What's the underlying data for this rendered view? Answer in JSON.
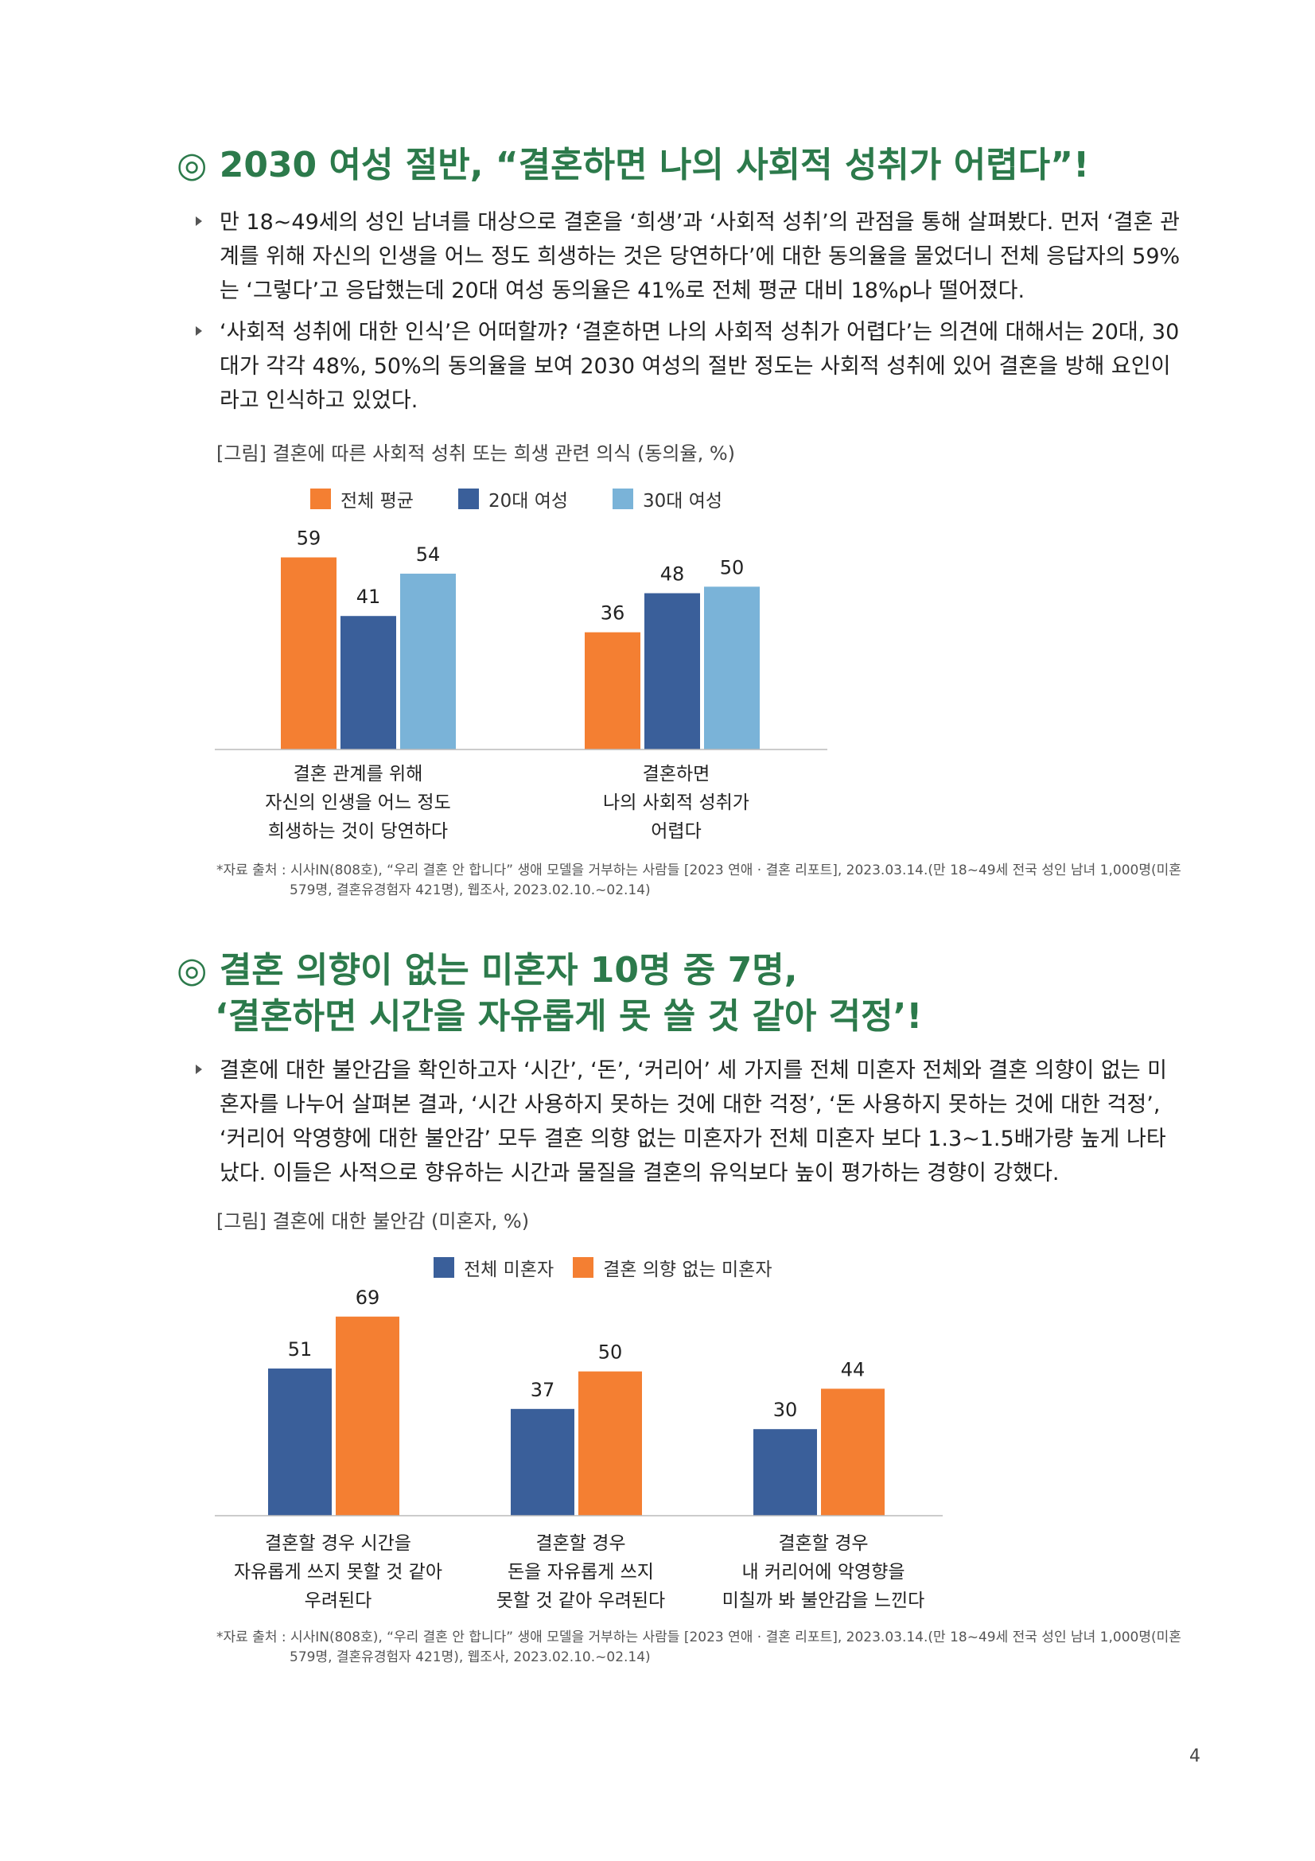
{
  "section1": {
    "title": "◎ 2030 여성 절반, “결혼하면 나의 사회적 성취가 어렵다”!",
    "bullets": [
      [
        "만 18~49세의 성인 남녀를 대상으로 결혼을 ‘희생’과 ‘사회적 성취’의 관점을 통해 살펴봤다. 먼저 ‘결혼 관",
        "계를 위해 자신의 인생을 어느 정도 희생하는 것은 당연하다’에 대한 동의율을 물었더니 전체 응답자의 59%",
        "는 ‘그렇다’고 응답했는데 20대 여성 동의율은 41%로 전체 평균 대비 18%p나 떨어졌다."
      ],
      [
        "‘사회적 성취에 대한 인식’은 어떠할까? ‘결혼하면 나의 사회적 성취가 어렵다’는 의견에 대해서는 20대, 30",
        "대가 각각 48%, 50%의 동의율을 보여 2030 여성의 절반 정도는 사회적 성취에 있어 결혼을 방해 요인이",
        "라고 인식하고 있었다."
      ]
    ],
    "figure_caption": "[그림] 결혼에 따른 사회적 성취 또는 희생 관련 의식 (동의율, %)",
    "legend": [
      "전체 평균",
      "20대 여성",
      "30대 여성"
    ],
    "category_labels": [
      [
        "결혼 관계를 위해",
        "자신의 인생을 어느 정도",
        "희생하는 것이 당연하다"
      ],
      [
        "결혼하면",
        "나의 사회적 성취가",
        "어렵다"
      ]
    ],
    "source_line1": "*자료 출처 : 시사IN(808호), “우리 결혼 안 합니다” 생애 모델을 거부하는 사람들 [2023 연애 · 결혼 리포트], 2023.03.14.(만 18~49세 전국 성인 남녀 1,000명(미혼",
    "source_line2": "579명, 결혼유경험자 421명), 웹조사, 2023.02.10.~02.14)"
  },
  "section2": {
    "title_line1": "◎ 결혼 의향이 없는 미혼자 10명 중 7명,",
    "title_line2": "‘결혼하면 시간을 자유롭게 못 쓸 것 같아 걱정’!",
    "bullets": [
      [
        "결혼에 대한 불안감을 확인하고자 ‘시간’, ‘돈’, ‘커리어’ 세 가지를 전체 미혼자 전체와 결혼 의향이 없는 미",
        "혼자를 나누어 살펴본 결과, ‘시간 사용하지 못하는 것에 대한 걱정’, ‘돈 사용하지 못하는 것에 대한 걱정’,",
        "‘커리어 악영향에 대한 불안감’ 모두 결혼 의향 없는 미혼자가 전체 미혼자 보다 1.3~1.5배가량 높게 나타",
        "났다. 이들은 사적으로 향유하는 시간과 물질을 결혼의 유익보다 높이 평가하는 경향이 강했다."
      ]
    ],
    "figure_caption": "[그림] 결혼에 대한 불안감 (미혼자, %)",
    "legend": [
      "전체 미혼자",
      "결혼 의향 없는 미혼자"
    ],
    "category_labels": [
      [
        "결혼할 경우 시간을",
        "자유롭게 쓰지 못할 것 같아",
        "우려된다"
      ],
      [
        "결혼할 경우",
        "돈을 자유롭게 쓰지",
        "못할 것 같아 우려된다"
      ],
      [
        "결혼할 경우",
        "내 커리어에 악영향을",
        "미칠까 봐 불안감을 느낀다"
      ]
    ],
    "source_line1": "*자료 출처 : 시사IN(808호), “우리 결혼 안 합니다” 생애 모델을 거부하는 사람들 [2023 연애 · 결혼 리포트], 2023.03.14.(만 18~49세 전국 성인 남녀 1,000명(미혼",
    "source_line2": "579명, 결혼유경험자 421명), 웹조사, 2023.02.10.~02.14)"
  },
  "page_number": "4",
  "colors": {
    "green_title": "#2c7a4b",
    "orange": "#f47f32",
    "dark_blue": "#3a5f9a",
    "light_blue": "#7ab3d8"
  },
  "chart_data": [
    {
      "type": "bar",
      "categories": [
        "결혼 관계를 위해 자신의 인생을 어느 정도 희생하는 것이 당연하다",
        "결혼하면 나의 사회적 성취가 어렵다"
      ],
      "series": [
        {
          "name": "전체 평균",
          "values": [
            59,
            36
          ],
          "color": "#f47f32"
        },
        {
          "name": "20대 여성",
          "values": [
            41,
            48
          ],
          "color": "#3a5f9a"
        },
        {
          "name": "30대 여성",
          "values": [
            54,
            50
          ],
          "color": "#7ab3d8"
        }
      ],
      "ylim": [
        0,
        65
      ],
      "grid": false,
      "legend": "top"
    },
    {
      "type": "bar",
      "categories": [
        "결혼할 경우 시간을 자유롭게 쓰지 못할 것 같아 우려된다",
        "결혼할 경우 돈을 자유롭게 쓰지 못할 것 같아 우려된다",
        "결혼할 경우 내 커리어에 악영향을 미칠까 봐 불안감을 느낀다"
      ],
      "series": [
        {
          "name": "전체 미혼자",
          "values": [
            51,
            37,
            30
          ],
          "color": "#3a5f9a"
        },
        {
          "name": "결혼 의향 없는 미혼자",
          "values": [
            69,
            50,
            44
          ],
          "color": "#f47f32"
        }
      ],
      "ylim": [
        0,
        75
      ],
      "grid": false,
      "legend": "top"
    }
  ]
}
